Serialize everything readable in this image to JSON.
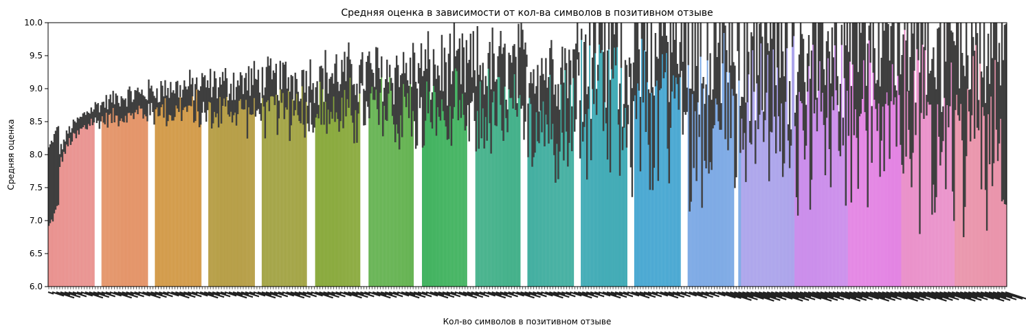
{
  "chart_data": {
    "type": "bar",
    "title": "Средняя оценка в зависимости от кол-ва символов в позитивном отзыве",
    "xlabel": "Кол-во символов в позитивном отзыве",
    "ylabel": "Средняя оценка",
    "ylim": [
      6.0,
      10.0
    ],
    "yticks": [
      "6.0",
      "6.5",
      "7.0",
      "7.5",
      "8.0",
      "8.5",
      "9.0",
      "9.5",
      "10.0"
    ],
    "grid": false,
    "legend": "none",
    "x_category_count": 700,
    "error_bars": true,
    "mean_trend": [
      [
        0,
        7.6
      ],
      [
        15,
        8.3
      ],
      [
        30,
        8.6
      ],
      [
        50,
        8.75
      ],
      [
        80,
        8.85
      ],
      [
        120,
        8.9
      ],
      [
        180,
        8.95
      ],
      [
        250,
        9.0
      ],
      [
        350,
        9.0
      ],
      [
        450,
        9.0
      ],
      [
        550,
        9.0
      ],
      [
        650,
        9.0
      ],
      [
        700,
        9.0
      ]
    ],
    "palette": [
      "#e88d8a",
      "#e39164",
      "#d0953f",
      "#b49b40",
      "#9e9f3b",
      "#86a737",
      "#5fb04b",
      "#3bb05a",
      "#3dae86",
      "#3aab9c",
      "#3aa8b3",
      "#3fa3cf",
      "#79a7e4",
      "#a8a0ea",
      "#c989ea",
      "#e27fe2",
      "#e98dc8",
      "#e990a8"
    ],
    "error_color": "#3f3f3f"
  }
}
